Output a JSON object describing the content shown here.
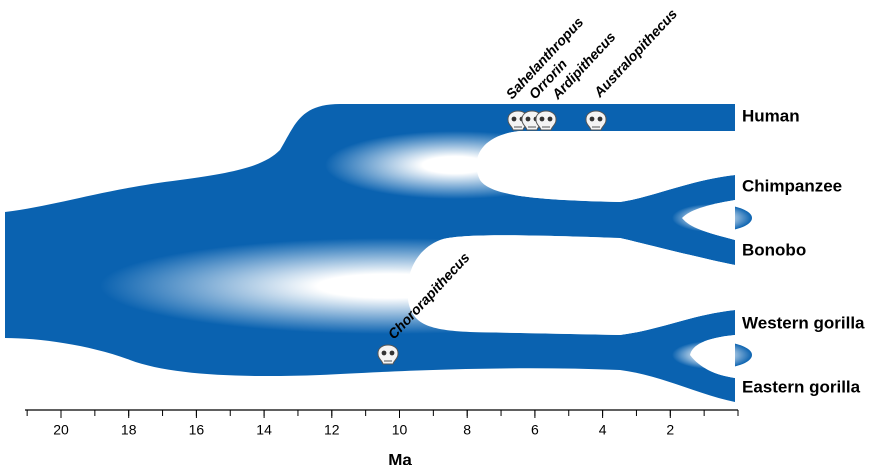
{
  "species": [
    "Human",
    "Chimpanzee",
    "Bonobo",
    "Western gorilla",
    "Eastern gorilla"
  ],
  "fossils": [
    "Sahelanthropus",
    "Orrorin",
    "Ardipithecus",
    "Australopithecus",
    "Chororapithecus"
  ],
  "axis": {
    "label": "Ma",
    "ticks": [
      20,
      18,
      16,
      14,
      12,
      10,
      8,
      6,
      4,
      2
    ]
  }
}
